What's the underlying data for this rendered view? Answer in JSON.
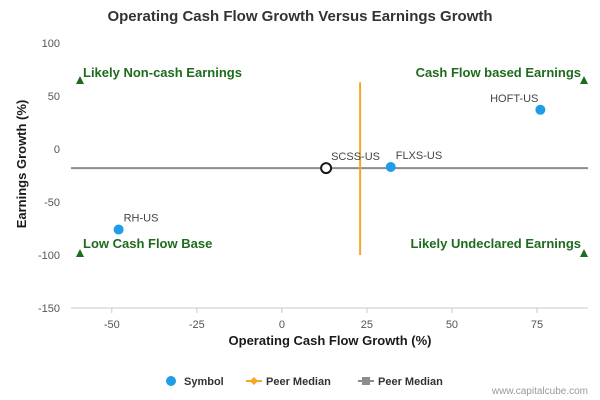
{
  "chart_data": {
    "type": "scatter",
    "title": "Operating Cash Flow Growth Versus Earnings Growth",
    "xlabel": "Operating Cash Flow Growth (%)",
    "ylabel": "Earnings Growth (%)",
    "xlim": [
      -62,
      90
    ],
    "ylim": [
      -150,
      100
    ],
    "xticks": [
      -50,
      -25,
      0,
      25,
      50,
      75
    ],
    "yticks": [
      100,
      50,
      0,
      -50,
      -100,
      -150
    ],
    "points": [
      {
        "label": "HOFT-US",
        "x": 76,
        "y": 37,
        "color": "#1f9de6",
        "style": "filled"
      },
      {
        "label": "FLXS-US",
        "x": 32,
        "y": -17,
        "color": "#1f9de6",
        "style": "filled"
      },
      {
        "label": "SCSS-US",
        "x": 13,
        "y": -18,
        "color": "#1a1a1a",
        "style": "open"
      },
      {
        "label": "RH-US",
        "x": -48,
        "y": -76,
        "color": "#1f9de6",
        "style": "filled"
      }
    ],
    "peer_median_x": {
      "value": 23,
      "y_range": [
        63,
        -100
      ],
      "color": "#f5a623"
    },
    "peer_median_y": {
      "value": -18,
      "color": "#8c8c8c"
    },
    "quadrant_labels": [
      {
        "text": "Likely Non-cash Earnings",
        "position": "top-left"
      },
      {
        "text": "Cash Flow based Earnings",
        "position": "top-right"
      },
      {
        "text": "Low Cash Flow Base",
        "position": "bottom-left"
      },
      {
        "text": "Likely Undeclared Earnings",
        "position": "bottom-right"
      }
    ],
    "quadrant_color": "#1e6b1e",
    "legend": [
      {
        "label": "Symbol",
        "marker": "circle",
        "color": "#1f9de6"
      },
      {
        "label": "Peer Median",
        "marker": "diamond-line",
        "color": "#f5a623"
      },
      {
        "label": "Peer Median",
        "marker": "square-line",
        "color": "#8c8c8c"
      }
    ],
    "legend_position": "bottom-center",
    "grid": false
  },
  "watermark": "www.capitalcube.com"
}
